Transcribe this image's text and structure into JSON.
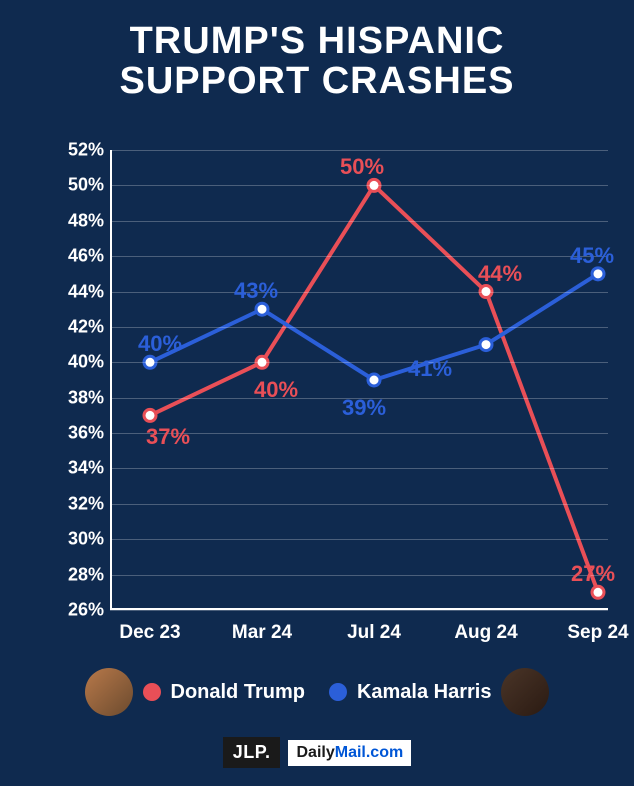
{
  "title_line1": "TRUMP'S HISPANIC",
  "title_line2": "SUPPORT CRASHES",
  "title_fontsize": 38,
  "background_color": "#0f2a4f",
  "chart": {
    "type": "line",
    "ylim": [
      26,
      52
    ],
    "ytick_step": 2,
    "yticks": [
      26,
      28,
      30,
      32,
      34,
      36,
      38,
      40,
      42,
      44,
      46,
      48,
      50,
      52
    ],
    "ytick_labels": [
      "26%",
      "28%",
      "30%",
      "32%",
      "34%",
      "36%",
      "38%",
      "40%",
      "42%",
      "44%",
      "46%",
      "48%",
      "50%",
      "52%"
    ],
    "categories": [
      "Dec 23",
      "Mar 24",
      "Jul 24",
      "Aug 24",
      "Sep 24"
    ],
    "grid_color": "rgba(255,255,255,0.25)",
    "axis_color": "#ffffff",
    "label_fontsize": 18,
    "series": [
      {
        "name": "Donald Trump",
        "color": "#e94f57",
        "values": [
          37,
          40,
          50,
          44,
          27
        ],
        "line_width": 4,
        "marker_radius": 6,
        "marker_fill": "#ffffff",
        "point_labels": [
          "37%",
          "40%",
          "50%",
          "44%",
          "27%"
        ],
        "label_offsets": [
          {
            "dx": 18,
            "dy": 22
          },
          {
            "dx": 14,
            "dy": 28
          },
          {
            "dx": -12,
            "dy": -18
          },
          {
            "dx": 14,
            "dy": -18
          },
          {
            "dx": -5,
            "dy": -18
          }
        ]
      },
      {
        "name": "Kamala Harris",
        "color": "#2b5fd9",
        "values": [
          40,
          43,
          39,
          41,
          45
        ],
        "line_width": 4,
        "marker_radius": 6,
        "marker_fill": "#ffffff",
        "point_labels": [
          "40%",
          "43%",
          "39%",
          "41%",
          "45%"
        ],
        "label_offsets": [
          {
            "dx": 10,
            "dy": -18
          },
          {
            "dx": -6,
            "dy": -18
          },
          {
            "dx": -10,
            "dy": 28
          },
          {
            "dx": -56,
            "dy": 24
          },
          {
            "dx": -6,
            "dy": -18
          }
        ]
      }
    ]
  },
  "legend": {
    "items": [
      {
        "label": "Donald Trump",
        "color": "#e94f57"
      },
      {
        "label": "Kamala Harris",
        "color": "#2b5fd9"
      }
    ]
  },
  "footer": {
    "jlp": "JLP.",
    "dm_daily": "Daily",
    "dm_mail": "Mail",
    "dm_com": ".com"
  }
}
